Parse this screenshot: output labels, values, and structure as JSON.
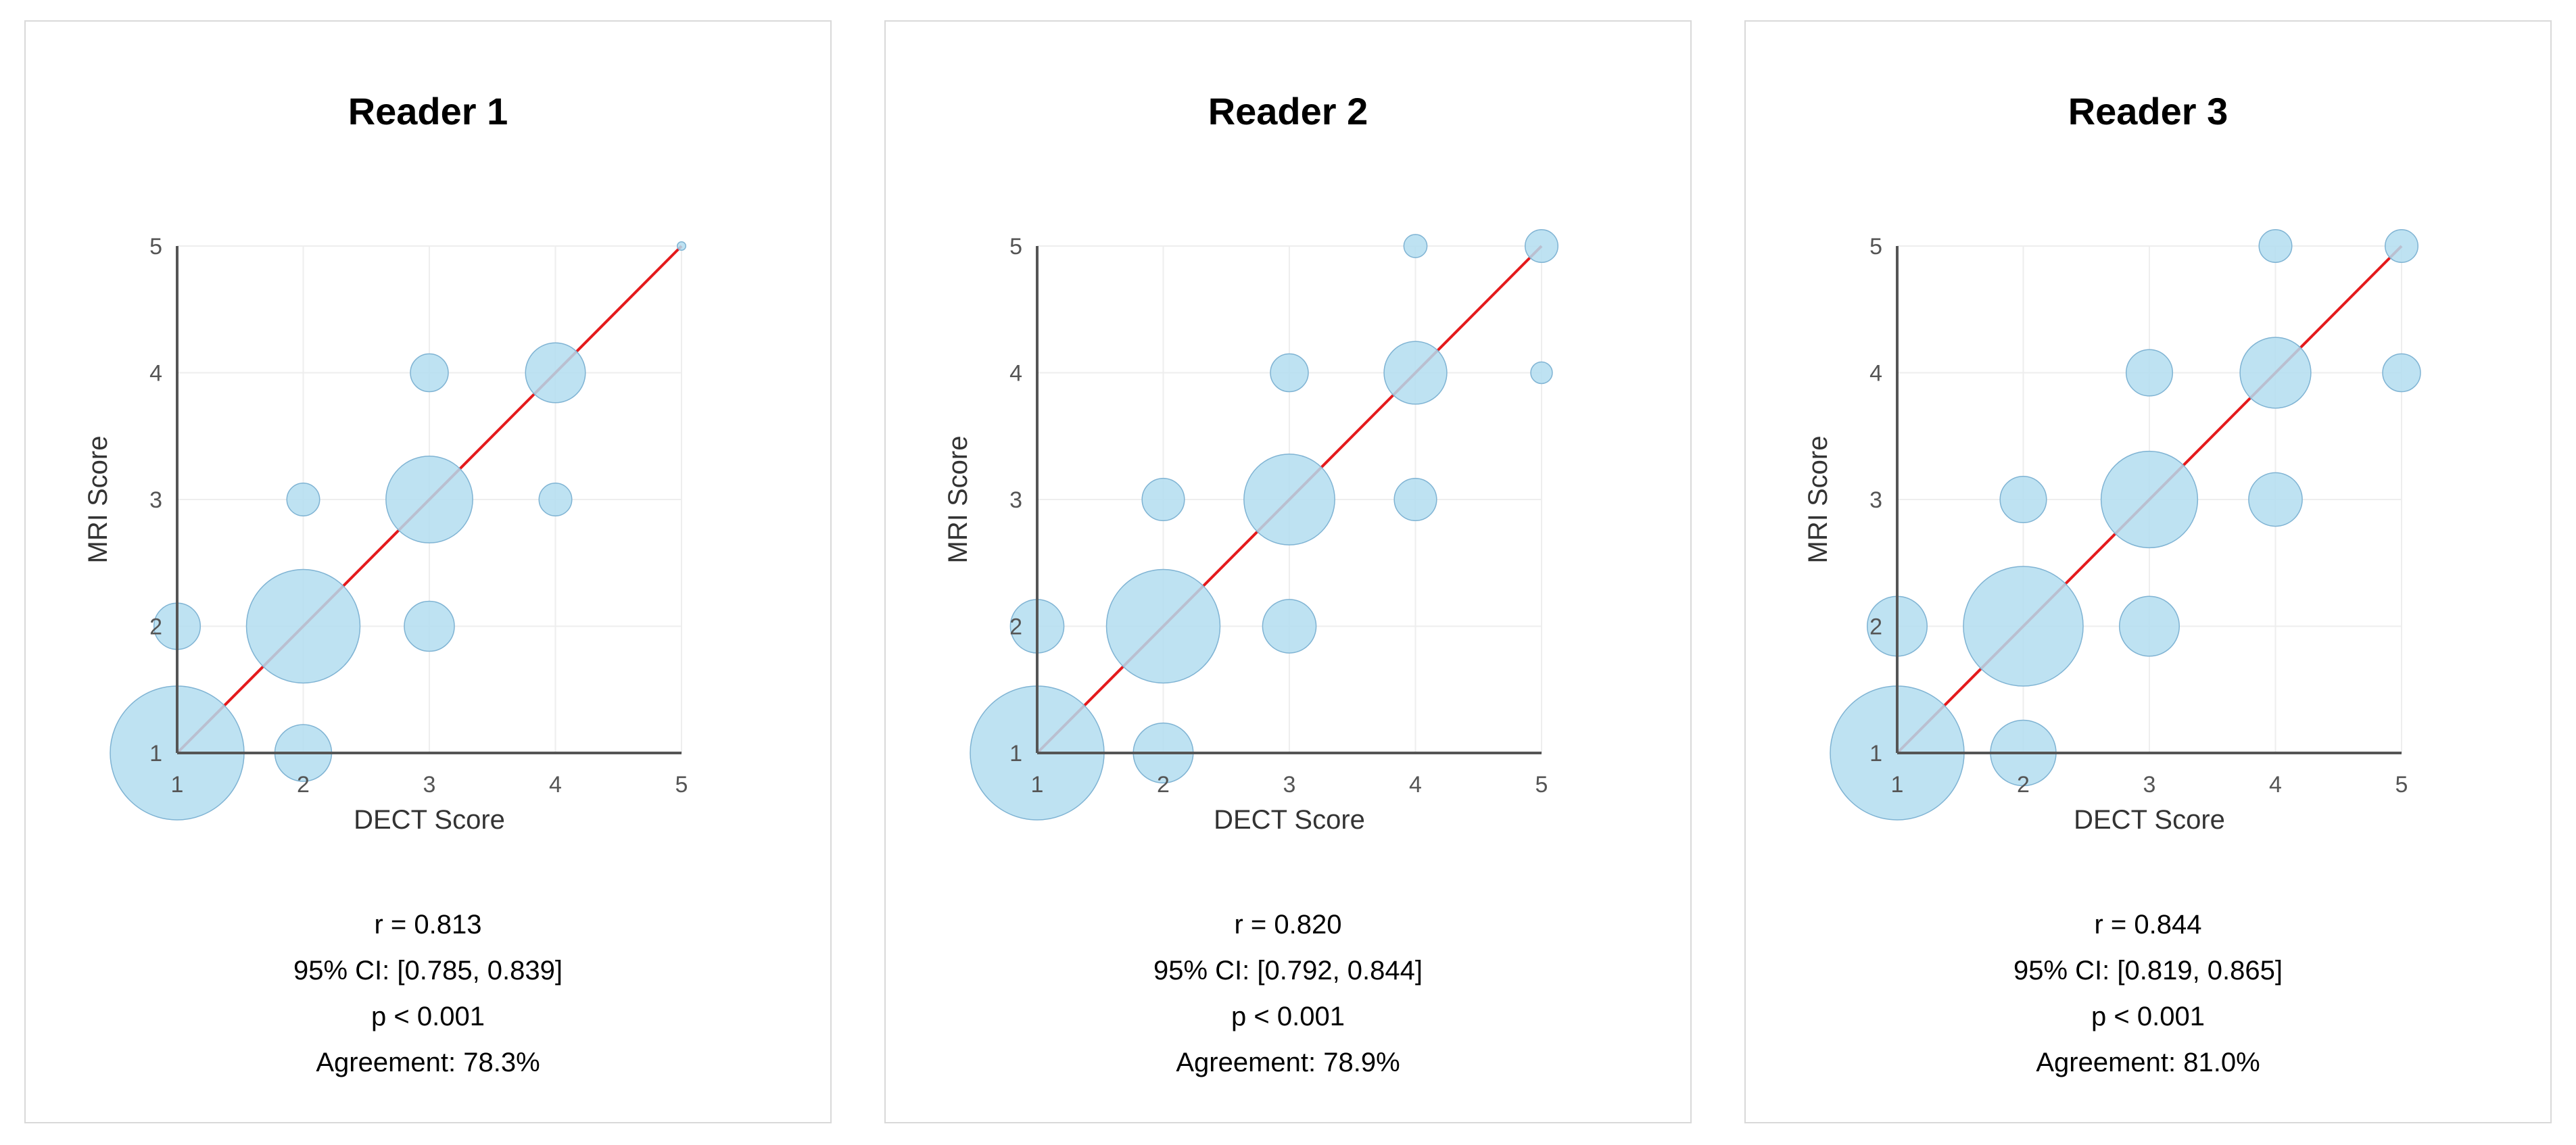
{
  "chart_data": [
    {
      "type": "scatter",
      "title": "Reader 1",
      "xlabel": "DECT Score",
      "ylabel": "MRI Score",
      "xlim": [
        1,
        5
      ],
      "ylim": [
        1,
        5
      ],
      "xticks": [
        "1",
        "2",
        "3",
        "4",
        "5"
      ],
      "yticks": [
        "1",
        "2",
        "3",
        "4",
        "5"
      ],
      "identity_line": true,
      "points": [
        {
          "x": 1,
          "y": 1,
          "count": 50
        },
        {
          "x": 1,
          "y": 2,
          "count": 6
        },
        {
          "x": 2,
          "y": 1,
          "count": 9
        },
        {
          "x": 2,
          "y": 2,
          "count": 36
        },
        {
          "x": 2,
          "y": 3,
          "count": 3
        },
        {
          "x": 3,
          "y": 2,
          "count": 7
        },
        {
          "x": 3,
          "y": 3,
          "count": 21
        },
        {
          "x": 3,
          "y": 4,
          "count": 4
        },
        {
          "x": 4,
          "y": 3,
          "count": 3
        },
        {
          "x": 4,
          "y": 4,
          "count": 10
        },
        {
          "x": 5,
          "y": 5,
          "count": 0.2
        }
      ],
      "stats": {
        "r": "r = 0.813",
        "ci": "95% CI: [0.785, 0.839]",
        "p": "p < 0.001",
        "agreement": "Agreement: 78.3%"
      }
    },
    {
      "type": "scatter",
      "title": "Reader 2",
      "xlabel": "DECT Score",
      "ylabel": "MRI Score",
      "xlim": [
        1,
        5
      ],
      "ylim": [
        1,
        5
      ],
      "xticks": [
        "1",
        "2",
        "3",
        "4",
        "5"
      ],
      "yticks": [
        "1",
        "2",
        "3",
        "4",
        "5"
      ],
      "identity_line": true,
      "points": [
        {
          "x": 1,
          "y": 1,
          "count": 50
        },
        {
          "x": 1,
          "y": 2,
          "count": 8
        },
        {
          "x": 2,
          "y": 1,
          "count": 10
        },
        {
          "x": 2,
          "y": 2,
          "count": 36
        },
        {
          "x": 2,
          "y": 3,
          "count": 5
        },
        {
          "x": 3,
          "y": 2,
          "count": 8
        },
        {
          "x": 3,
          "y": 3,
          "count": 23
        },
        {
          "x": 3,
          "y": 4,
          "count": 4
        },
        {
          "x": 4,
          "y": 3,
          "count": 5
        },
        {
          "x": 4,
          "y": 4,
          "count": 11
        },
        {
          "x": 4,
          "y": 5,
          "count": 1.5
        },
        {
          "x": 5,
          "y": 4,
          "count": 1.3
        },
        {
          "x": 5,
          "y": 5,
          "count": 3
        }
      ],
      "stats": {
        "r": "r = 0.820",
        "ci": "95% CI: [0.792, 0.844]",
        "p": "p < 0.001",
        "agreement": "Agreement: 78.9%"
      }
    },
    {
      "type": "scatter",
      "title": "Reader 3",
      "xlabel": "DECT Score",
      "ylabel": "MRI Score",
      "xlim": [
        1,
        5
      ],
      "ylim": [
        1,
        5
      ],
      "xticks": [
        "1",
        "2",
        "3",
        "4",
        "5"
      ],
      "yticks": [
        "1",
        "2",
        "3",
        "4",
        "5"
      ],
      "identity_line": true,
      "points": [
        {
          "x": 1,
          "y": 1,
          "count": 50
        },
        {
          "x": 1,
          "y": 2,
          "count": 10
        },
        {
          "x": 2,
          "y": 1,
          "count": 12
        },
        {
          "x": 2,
          "y": 2,
          "count": 40
        },
        {
          "x": 2,
          "y": 3,
          "count": 6
        },
        {
          "x": 3,
          "y": 2,
          "count": 10
        },
        {
          "x": 3,
          "y": 3,
          "count": 26
        },
        {
          "x": 3,
          "y": 4,
          "count": 6
        },
        {
          "x": 4,
          "y": 3,
          "count": 8
        },
        {
          "x": 4,
          "y": 4,
          "count": 14
        },
        {
          "x": 4,
          "y": 5,
          "count": 3
        },
        {
          "x": 5,
          "y": 4,
          "count": 4
        },
        {
          "x": 5,
          "y": 5,
          "count": 3
        }
      ],
      "stats": {
        "r": "r = 0.844",
        "ci": "95% CI: [0.819, 0.865]",
        "p": "p < 0.001",
        "agreement": "Agreement: 81.0%"
      }
    }
  ],
  "colors": {
    "bubble_fill": "#b3ddf0",
    "bubble_stroke": "#7fb3d3",
    "identity_line": "#e41a1c",
    "axis": "#555555",
    "grid": "#eeeeee",
    "panel_border": "#d9d9d9"
  }
}
